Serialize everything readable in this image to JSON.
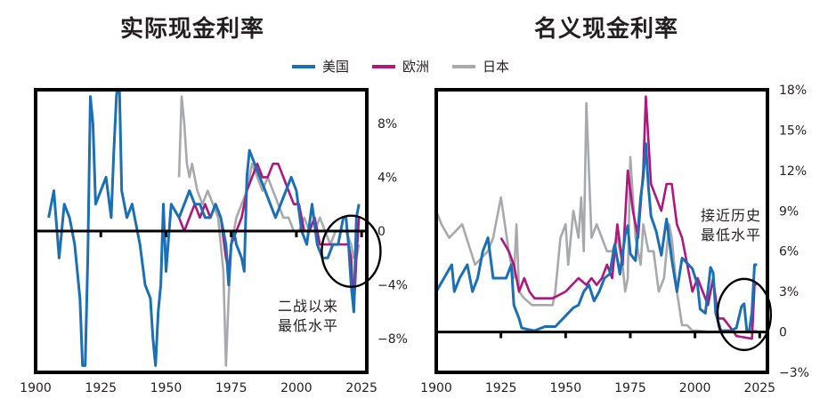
{
  "titles": {
    "left": "实际现金利率",
    "right": "名义现金利率"
  },
  "colors": {
    "us": "#1a6fb5",
    "europe": "#b0177c",
    "japan": "#a7a9ac",
    "frame": "#000000"
  },
  "legend": [
    {
      "name": "美国",
      "color": "#1a6fb5"
    },
    {
      "name": "欧洲",
      "color": "#b0177c"
    },
    {
      "name": "日本",
      "color": "#a7a9ac"
    }
  ],
  "chart_data": [
    {
      "type": "line",
      "title": "实际现金利率",
      "xlim": [
        1900,
        2027
      ],
      "ylim": [
        -10.5,
        10.5
      ],
      "xticks": [
        1900,
        1925,
        1950,
        1975,
        2000,
        2025
      ],
      "yticks": [
        8,
        4,
        0,
        -4,
        -8
      ],
      "ytick_labels": [
        "8%",
        "4%",
        "0",
        "−4%",
        "−8%"
      ],
      "annotation": {
        "text": [
          "二战以来",
          "最低水平"
        ],
        "center": [
          2021,
          -1.5
        ]
      },
      "series": [
        {
          "name": "美国",
          "color": "#1a6fb5",
          "x": [
            1905,
            1907,
            1909,
            1911,
            1913,
            1915,
            1917,
            1918,
            1919,
            1920,
            1921,
            1922,
            1923,
            1925,
            1927,
            1929,
            1930,
            1931,
            1932,
            1933,
            1935,
            1937,
            1938,
            1940,
            1942,
            1944,
            1945,
            1946,
            1947,
            1948,
            1949,
            1950,
            1952,
            1955,
            1957,
            1959,
            1961,
            1963,
            1965,
            1967,
            1969,
            1971,
            1973,
            1974,
            1975,
            1976,
            1977,
            1979,
            1980,
            1981,
            1982,
            1984,
            1986,
            1988,
            1990,
            1992,
            1994,
            1996,
            1998,
            2000,
            2002,
            2004,
            2006,
            2008,
            2010,
            2012,
            2014,
            2016,
            2018,
            2019,
            2020,
            2021,
            2022,
            2023,
            2024
          ],
          "y": [
            1,
            3,
            -2,
            2,
            1,
            -1,
            -5,
            -10,
            -10,
            -2,
            10,
            8,
            2,
            3,
            4,
            1,
            6,
            10,
            12,
            3,
            1,
            2,
            1,
            -1,
            -4,
            -5,
            -8,
            -10,
            -6,
            -4,
            2,
            -3,
            2,
            1,
            2,
            3,
            2,
            2,
            1,
            1,
            2,
            1,
            -1,
            -4,
            -1,
            0,
            -1,
            -2,
            -3,
            4,
            6,
            5,
            4,
            3,
            2,
            1,
            2,
            3,
            4,
            3,
            0,
            -1,
            2,
            -1,
            -2,
            -2,
            -1,
            -1,
            1,
            1,
            -1,
            -4,
            -6,
            1,
            2
          ]
        },
        {
          "name": "欧洲",
          "color": "#b0177c",
          "x": [
            1955,
            1957,
            1959,
            1961,
            1963,
            1965,
            1967,
            1969,
            1971,
            1973,
            1974,
            1975,
            1977,
            1979,
            1981,
            1983,
            1985,
            1987,
            1989,
            1991,
            1993,
            1995,
            1997,
            1999,
            2001,
            2003,
            2005,
            2007,
            2009,
            2011,
            2013,
            2015,
            2017,
            2019,
            2020,
            2021,
            2022,
            2023,
            2024
          ],
          "y": [
            1,
            0,
            1,
            2,
            1,
            2,
            1,
            2,
            1,
            -2,
            -3,
            -1,
            0,
            1,
            3,
            4,
            5,
            4,
            4,
            5,
            5,
            4,
            3,
            2,
            2,
            0,
            0,
            1,
            -1,
            -1,
            -1,
            -1,
            -1,
            -1,
            -1,
            -2,
            -6,
            -2,
            1
          ]
        },
        {
          "name": "日本",
          "color": "#a7a9ac",
          "x": [
            1955,
            1956,
            1957,
            1958,
            1959,
            1960,
            1962,
            1964,
            1966,
            1968,
            1970,
            1972,
            1973,
            1974,
            1975,
            1977,
            1979,
            1981,
            1983,
            1985,
            1987,
            1989,
            1991,
            1993,
            1995,
            1997,
            1999,
            2001,
            2003,
            2005,
            2007,
            2009,
            2011,
            2013,
            2015,
            2017,
            2019,
            2021,
            2022,
            2023,
            2024
          ],
          "y": [
            4,
            10,
            8,
            5,
            4,
            5,
            3,
            2,
            3,
            2,
            1,
            -3,
            -10,
            -5,
            -1,
            1,
            2,
            3,
            5,
            4,
            3,
            4,
            3,
            2,
            1,
            1,
            0,
            0,
            1,
            0,
            0,
            1,
            0,
            -1,
            0,
            0,
            0,
            -1,
            -2,
            -2,
            -1
          ]
        }
      ]
    },
    {
      "type": "line",
      "title": "名义现金利率",
      "xlim": [
        1900,
        2028
      ],
      "ylim": [
        -3,
        18
      ],
      "xticks": [
        1900,
        1925,
        1950,
        1975,
        2000,
        2025
      ],
      "yticks": [
        18,
        15,
        12,
        9,
        6,
        3,
        0,
        -3
      ],
      "ytick_labels": [
        "18%",
        "15%",
        "12%",
        "9%",
        "6%",
        "3%",
        "0",
        "−3%"
      ],
      "annotation": {
        "text": [
          "接近历史",
          "最低水平"
        ],
        "center": [
          2019,
          1.3
        ]
      },
      "series": [
        {
          "name": "美国",
          "color": "#1a6fb5",
          "x": [
            1900,
            1903,
            1906,
            1907,
            1909,
            1912,
            1914,
            1916,
            1918,
            1920,
            1922,
            1925,
            1927,
            1929,
            1930,
            1932,
            1933,
            1935,
            1938,
            1942,
            1946,
            1950,
            1953,
            1955,
            1957,
            1959,
            1961,
            1963,
            1965,
            1967,
            1969,
            1971,
            1973,
            1974,
            1975,
            1977,
            1979,
            1980,
            1981,
            1982,
            1983,
            1985,
            1987,
            1989,
            1991,
            1993,
            1995,
            1997,
            1999,
            2001,
            2002,
            2004,
            2006,
            2007,
            2008,
            2010,
            2012,
            2014,
            2016,
            2018,
            2019,
            2020,
            2021,
            2022,
            2023,
            2024
          ],
          "y": [
            3,
            4,
            5,
            3,
            4,
            5,
            3,
            4,
            6,
            7,
            4,
            4,
            4,
            5,
            2,
            1,
            0.3,
            0.2,
            0.1,
            0.4,
            0.4,
            1.2,
            1.8,
            2,
            3,
            3.5,
            2.3,
            3,
            4,
            4.3,
            6.5,
            4.3,
            7.2,
            7.9,
            5.8,
            5.3,
            10,
            11.5,
            14,
            10.8,
            8.6,
            7.5,
            5.7,
            8.4,
            5.4,
            3,
            5.5,
            5.1,
            4.7,
            3.5,
            1.7,
            1.4,
            4.8,
            4.4,
            1.4,
            0.1,
            0.1,
            0.1,
            0.3,
            1.9,
            2.1,
            0.1,
            0.1,
            1.5,
            5,
            5
          ]
        },
        {
          "name": "欧洲",
          "color": "#b0177c",
          "x": [
            1925,
            1928,
            1930,
            1932,
            1934,
            1936,
            1938,
            1940,
            1945,
            1950,
            1955,
            1958,
            1960,
            1962,
            1964,
            1966,
            1968,
            1970,
            1972,
            1974,
            1976,
            1978,
            1980,
            1981,
            1983,
            1985,
            1987,
            1989,
            1991,
            1993,
            1995,
            1997,
            1999,
            2001,
            2003,
            2005,
            2007,
            2009,
            2011,
            2013,
            2015,
            2016,
            2019,
            2022,
            2023,
            2024
          ],
          "y": [
            7,
            6,
            5,
            3,
            4,
            3,
            2.5,
            2.5,
            2.5,
            3,
            4,
            3.5,
            4,
            3.5,
            4,
            5,
            4,
            8,
            5,
            12,
            9,
            7,
            12,
            17.5,
            11,
            10,
            9,
            11,
            11,
            8,
            7,
            5,
            3,
            4,
            3,
            2,
            4,
            1,
            1,
            0.5,
            0,
            -0.3,
            -0.4,
            -0.5,
            3.5,
            3.6
          ]
        },
        {
          "name": "日本",
          "color": "#a7a9ac",
          "x": [
            1900,
            1902,
            1905,
            1910,
            1915,
            1920,
            1922,
            1925,
            1928,
            1930,
            1931,
            1932,
            1934,
            1937,
            1940,
            1945,
            1946,
            1948,
            1950,
            1951,
            1953,
            1955,
            1956,
            1957,
            1958,
            1960,
            1962,
            1964,
            1966,
            1968,
            1970,
            1972,
            1973,
            1974,
            1975,
            1977,
            1979,
            1980,
            1982,
            1984,
            1986,
            1988,
            1990,
            1991,
            1993,
            1995,
            1997,
            1999,
            2001,
            2005,
            2010,
            2015,
            2020,
            2024
          ],
          "y": [
            9,
            8,
            7,
            8,
            5,
            6,
            7,
            10,
            6,
            4,
            8,
            3,
            2.5,
            2,
            2,
            2,
            3,
            7,
            8,
            5,
            9,
            7,
            10,
            6,
            17,
            7,
            8,
            7,
            6,
            6,
            7,
            5,
            3,
            4,
            13,
            7,
            5,
            8,
            6,
            6,
            3,
            4,
            8,
            7,
            3,
            0.5,
            0.5,
            0.1,
            0.1,
            0,
            0,
            0,
            0,
            0.1
          ]
        }
      ]
    }
  ]
}
